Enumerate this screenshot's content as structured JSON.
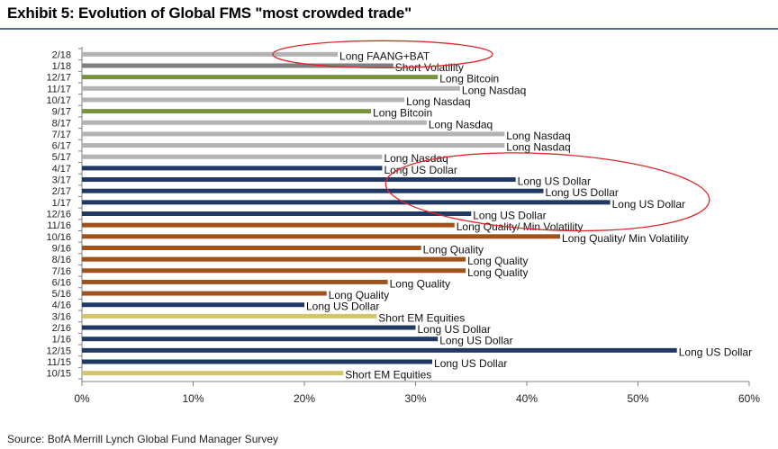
{
  "title": "Exhibit 5: Evolution of Global FMS \"most crowded trade\"",
  "source": "Source: BofA Merrill Lynch Global Fund Manager Survey",
  "colors": {
    "tech": "#b3b3b3",
    "vol": "#7f7f7f",
    "bitcoin": "#77933c",
    "usd": "#1f3864",
    "quality": "#a0521a",
    "em": "#d6c46c",
    "axis": "#808080",
    "ellipse": "#e0262a"
  },
  "chart_data": {
    "type": "bar",
    "orientation": "horizontal",
    "title": "Exhibit 5: Evolution of Global FMS \"most crowded trade\"",
    "xlim": [
      0,
      60
    ],
    "x_ticks": [
      0,
      10,
      20,
      30,
      40,
      50,
      60
    ],
    "x_tick_labels": [
      "0%",
      "10%",
      "20%",
      "30%",
      "40%",
      "50%",
      "60%"
    ],
    "grid": false,
    "categories": [
      "2/18",
      "1/18",
      "12/17",
      "11/17",
      "10/17",
      "9/17",
      "8/17",
      "7/17",
      "6/17",
      "5/17",
      "4/17",
      "3/17",
      "2/17",
      "1/17",
      "12/16",
      "11/16",
      "10/16",
      "9/16",
      "8/16",
      "7/16",
      "6/16",
      "5/16",
      "4/16",
      "3/16",
      "2/16",
      "1/16",
      "12/15",
      "11/15",
      "10/15"
    ],
    "values": [
      23,
      28,
      32,
      34,
      29,
      26,
      31,
      38,
      38,
      27,
      27,
      39,
      41.5,
      47.5,
      35,
      33.5,
      43,
      30.5,
      34.5,
      34.5,
      27.5,
      22,
      20,
      26.5,
      30,
      32,
      53.5,
      31.5,
      23.5
    ],
    "labels": [
      "Long FAANG+BAT",
      "Short Volatility",
      "Long Bitcoin",
      "Long Nasdaq",
      "Long Nasdaq",
      "Long Bitcoin",
      "Long Nasdaq",
      "Long Nasdaq",
      "Long Nasdaq",
      "Long Nasdaq",
      "Long US Dollar",
      "Long US Dollar",
      "Long US Dollar",
      "Long US Dollar",
      "Long US Dollar",
      "Long Quality/ Min Volatility",
      "Long Quality/ Min Volatility",
      "Long Quality",
      "Long Quality",
      "Long Quality",
      "Long Quality",
      "Long Quality",
      "Long US Dollar",
      "Short EM Equities",
      "Long US Dollar",
      "Long US Dollar",
      "Long US Dollar",
      "Long US Dollar",
      "Short EM Equities"
    ],
    "groups": [
      "tech",
      "vol",
      "bitcoin",
      "tech",
      "tech",
      "bitcoin",
      "tech",
      "tech",
      "tech",
      "tech",
      "usd",
      "usd",
      "usd",
      "usd",
      "usd",
      "quality",
      "quality",
      "quality",
      "quality",
      "quality",
      "quality",
      "quality",
      "usd",
      "em",
      "usd",
      "usd",
      "usd",
      "usd",
      "em"
    ],
    "highlights": [
      {
        "from": "2/18",
        "to": "2/18"
      },
      {
        "from": "4/17",
        "to": "12/16"
      }
    ]
  }
}
